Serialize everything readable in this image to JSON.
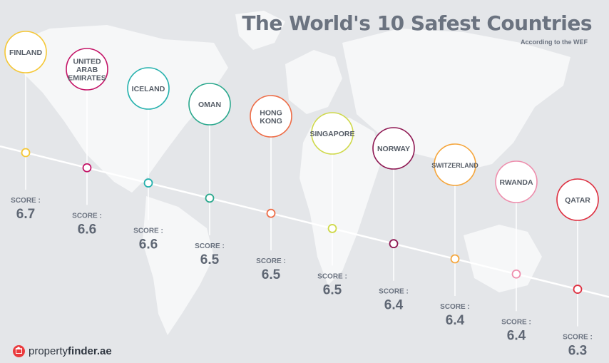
{
  "header": {
    "title": "The World's 10 Safest Countries",
    "subtitle": "According to the WEF"
  },
  "brand": {
    "name_prefix": "property",
    "name_suffix": "finder.ae"
  },
  "chart_data": {
    "type": "scatter",
    "title": "The World's 10 Safest Countries",
    "subtitle": "According to the WEF",
    "score_label": "SCORE :",
    "categories": [
      "FINLAND",
      "UNITED ARAB EMIRATES",
      "ICELAND",
      "OMAN",
      "HONG KONG",
      "SINGAPORE",
      "NORWAY",
      "SWITZERLAND",
      "RWANDA",
      "QATAR"
    ],
    "label_lines": [
      [
        "FINLAND"
      ],
      [
        "UNITED",
        "ARAB",
        "EMIRATES"
      ],
      [
        "ICELAND"
      ],
      [
        "OMAN"
      ],
      [
        "HONG",
        "KONG"
      ],
      [
        "SINGAPORE"
      ],
      [
        "NORWAY"
      ],
      [
        "SWITZERLAND"
      ],
      [
        "RWANDA"
      ],
      [
        "QATAR"
      ]
    ],
    "values": [
      6.7,
      6.6,
      6.6,
      6.5,
      6.5,
      6.5,
      6.4,
      6.4,
      6.4,
      6.3
    ],
    "colors": [
      "#f5c735",
      "#c41568",
      "#25b1ad",
      "#2aa88d",
      "#ee6c46",
      "#cfd94a",
      "#8e1752",
      "#f5a63c",
      "#ee8ead",
      "#de2e3f"
    ],
    "grid": false,
    "legend": "none"
  }
}
